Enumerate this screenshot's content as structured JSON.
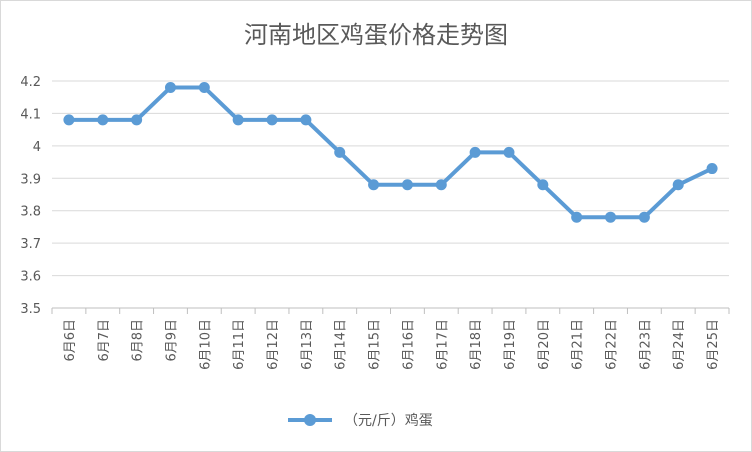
{
  "chart_data": {
    "type": "line",
    "title": "河南地区鸡蛋价格走势图",
    "categories": [
      "6月6日",
      "6月7日",
      "6月8日",
      "6月9日",
      "6月10日",
      "6月11日",
      "6月12日",
      "6月13日",
      "6月14日",
      "6月15日",
      "6月16日",
      "6月17日",
      "6月18日",
      "6月19日",
      "6月20日",
      "6月21日",
      "6月22日",
      "6月23日",
      "6月24日",
      "6月25日"
    ],
    "series": [
      {
        "name": "（元/斤）鸡蛋",
        "values": [
          4.08,
          4.08,
          4.08,
          4.18,
          4.18,
          4.08,
          4.08,
          4.08,
          3.98,
          3.88,
          3.88,
          3.88,
          3.98,
          3.98,
          3.88,
          3.78,
          3.78,
          3.78,
          3.88,
          3.93
        ],
        "color": "#5b9bd5"
      }
    ],
    "yticks": [
      "3.5",
      "3.6",
      "3.7",
      "3.8",
      "3.9",
      "4",
      "4.1",
      "4.2"
    ],
    "ylim": [
      3.5,
      4.2
    ],
    "xlabel": "",
    "ylabel": "",
    "grid": true,
    "legend_position": "bottom"
  }
}
